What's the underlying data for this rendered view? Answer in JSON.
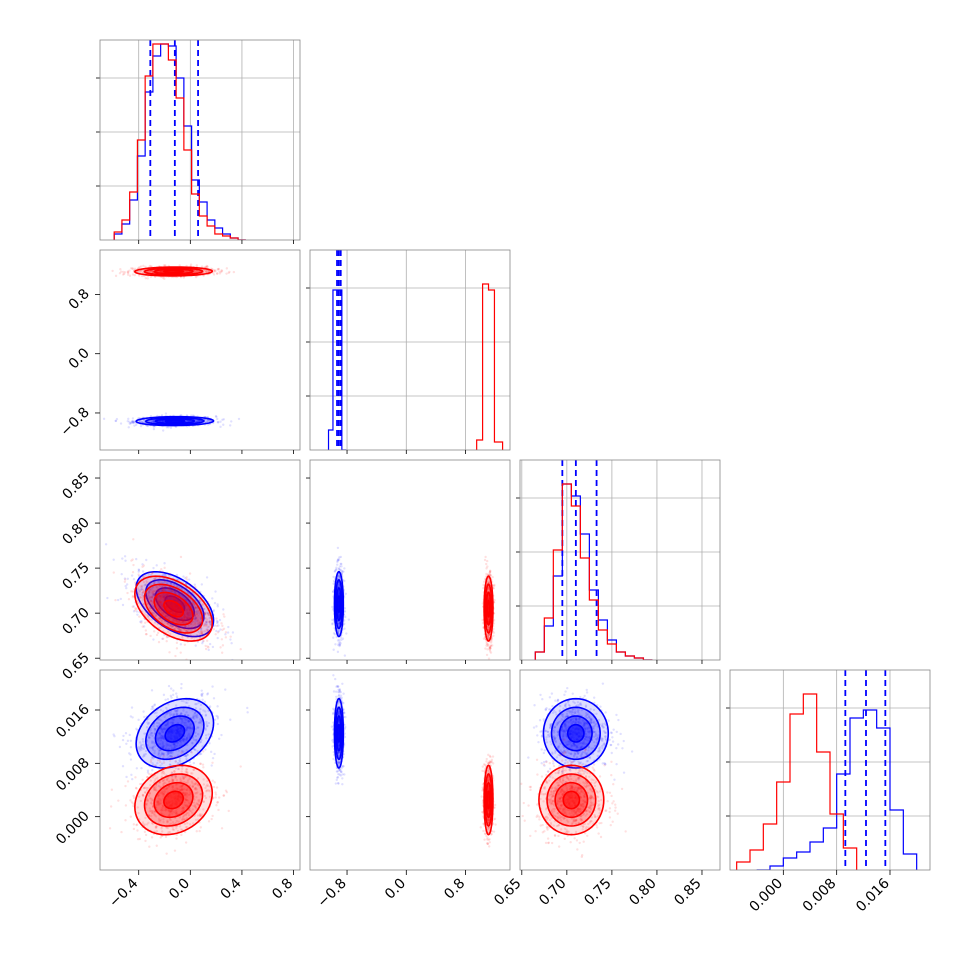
{
  "chart_data": {
    "type": "corner",
    "parameters": [
      {
        "id": "p1",
        "range": [
          -0.7,
          0.85
        ],
        "tick_values": [
          -0.4,
          0.0,
          0.4,
          0.8
        ],
        "tick_labels": [
          "−0.4",
          "0.0",
          "0.4",
          "0.8"
        ]
      },
      {
        "id": "p2",
        "range": [
          -1.3,
          1.4
        ],
        "tick_values": [
          -0.8,
          0.0,
          0.8
        ],
        "tick_labels": [
          "−0.8",
          "0.0",
          "0.8"
        ]
      },
      {
        "id": "p3",
        "range": [
          0.648,
          0.87
        ],
        "tick_values": [
          0.65,
          0.7,
          0.75,
          0.8,
          0.85
        ],
        "tick_labels": [
          "0.65",
          "0.70",
          "0.75",
          "0.80",
          "0.85"
        ]
      },
      {
        "id": "p4",
        "range": [
          -0.008,
          0.022
        ],
        "tick_values": [
          0.0,
          0.008,
          0.016
        ],
        "tick_labels": [
          "0.000",
          "0.008",
          "0.016"
        ]
      }
    ],
    "grid": true,
    "series": [
      {
        "color": "#0000ff",
        "means": [
          -0.12,
          -0.91,
          0.71,
          0.0125
        ],
        "sds": [
          0.15,
          0.03,
          0.018,
          0.0026
        ],
        "correlations": {
          "1-0": 0.05,
          "2-0": -0.5,
          "2-1": 0.0,
          "3-0": 0.3,
          "3-1": 0.0,
          "3-2": 0.0
        },
        "quantiles": [
          [
            -0.31,
            -0.12,
            0.06
          ],
          [
            -0.935,
            -0.91,
            -0.885
          ],
          [
            0.695,
            0.71,
            0.733
          ],
          [
            0.0093,
            0.0124,
            0.0153
          ]
        ],
        "histograms": [
          {
            "edges": [
              -0.59,
              -0.53,
              -0.47,
              -0.41,
              -0.35,
              -0.29,
              -0.23,
              -0.17,
              -0.11,
              -0.05,
              0.01,
              0.07,
              0.13,
              0.19,
              0.25,
              0.31,
              0.37,
              0.43
            ],
            "counts": [
              0.03,
              0.08,
              0.2,
              0.42,
              0.74,
              0.92,
              0.98,
              0.97,
              0.81,
              0.57,
              0.3,
              0.19,
              0.1,
              0.06,
              0.03,
              0.01,
              0.0
            ]
          },
          {
            "edges": [
              -1.05,
              -0.99,
              -0.93,
              -0.87,
              -0.81
            ],
            "counts": [
              0.1,
              0.8,
              0.8,
              0.0
            ]
          },
          {
            "edges": [
              0.665,
              0.675,
              0.685,
              0.695,
              0.705,
              0.715,
              0.725,
              0.735,
              0.745,
              0.755,
              0.765,
              0.775,
              0.785,
              0.795
            ],
            "counts": [
              0.04,
              0.17,
              0.42,
              0.88,
              0.82,
              0.63,
              0.35,
              0.2,
              0.1,
              0.04,
              0.02,
              0.01,
              0.0
            ]
          },
          {
            "edges": [
              -0.004,
              -0.002,
              0.0,
              0.002,
              0.004,
              0.006,
              0.008,
              0.01,
              0.012,
              0.014,
              0.016,
              0.018,
              0.02
            ],
            "counts": [
              0.0,
              0.02,
              0.06,
              0.09,
              0.14,
              0.21,
              0.48,
              0.76,
              0.8,
              0.71,
              0.3,
              0.08
            ]
          }
        ]
      },
      {
        "color": "#ff0000",
        "means": [
          -0.13,
          1.11,
          0.705,
          0.0025
        ],
        "sds": [
          0.15,
          0.03,
          0.018,
          0.0026
        ],
        "correlations": {
          "1-0": 0.05,
          "2-0": -0.45,
          "2-1": 0.0,
          "3-0": 0.2,
          "3-1": 0.0,
          "3-2": 0.0
        },
        "histograms": [
          {
            "edges": [
              -0.59,
              -0.53,
              -0.47,
              -0.41,
              -0.35,
              -0.29,
              -0.23,
              -0.17,
              -0.11,
              -0.05,
              0.01,
              0.07,
              0.13,
              0.19,
              0.25,
              0.31,
              0.37,
              0.43
            ],
            "counts": [
              0.04,
              0.1,
              0.24,
              0.5,
              0.82,
              0.98,
              0.98,
              0.9,
              0.71,
              0.45,
              0.23,
              0.12,
              0.07,
              0.03,
              0.02,
              0.01,
              0.0
            ]
          },
          {
            "edges": [
              0.95,
              1.03,
              1.11,
              1.19,
              1.3
            ],
            "counts": [
              0.05,
              0.83,
              0.8,
              0.04
            ]
          },
          {
            "edges": [
              0.665,
              0.675,
              0.685,
              0.695,
              0.705,
              0.715,
              0.725,
              0.735,
              0.745,
              0.755,
              0.765,
              0.775,
              0.785,
              0.795
            ],
            "counts": [
              0.04,
              0.21,
              0.55,
              0.88,
              0.77,
              0.51,
              0.3,
              0.15,
              0.08,
              0.04,
              0.02,
              0.01,
              0.0
            ]
          },
          {
            "edges": [
              -0.007,
              -0.005,
              -0.003,
              -0.001,
              0.001,
              0.003,
              0.005,
              0.007,
              0.009,
              0.011
            ],
            "counts": [
              0.04,
              0.1,
              0.23,
              0.44,
              0.78,
              0.88,
              0.59,
              0.28,
              0.11
            ]
          }
        ]
      }
    ]
  }
}
